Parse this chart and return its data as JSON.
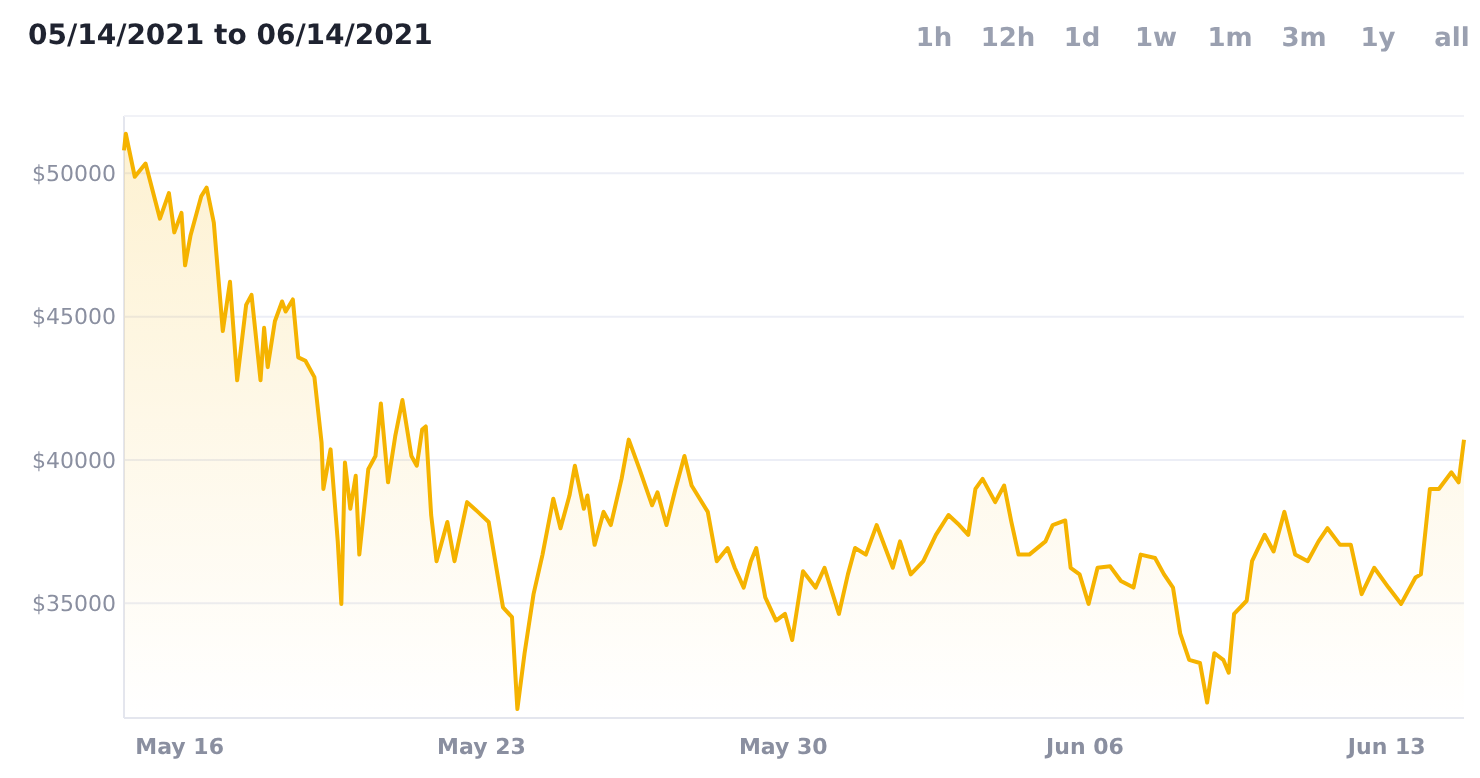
{
  "chart_data": {
    "type": "area",
    "title": "05/14/2021 to 06/14/2021",
    "annotations": [
      "1h",
      "12h",
      "1d",
      "1w",
      "1m",
      "3m",
      "1y",
      "all"
    ],
    "xlim": [
      "2021-05-14T17:00",
      "2021-06-14T19:00"
    ],
    "xticks": [
      {
        "value": "2021-05-16",
        "label": "May 16"
      },
      {
        "value": "2021-05-23",
        "label": "May 23"
      },
      {
        "value": "2021-05-30",
        "label": "May 30"
      },
      {
        "value": "2021-06-06",
        "label": "Jun 06"
      },
      {
        "value": "2021-06-13",
        "label": "Jun 13"
      }
    ],
    "ylim": [
      31000,
      52000
    ],
    "yticks": [
      {
        "value": 35000,
        "label": "$35000"
      },
      {
        "value": 40000,
        "label": "$40000"
      },
      {
        "value": 45000,
        "label": "$45000"
      },
      {
        "value": 50000,
        "label": "$50000"
      }
    ],
    "grid": "y",
    "series": [
      {
        "color": "#f5b300",
        "x": [
          "2021-05-14T17:00",
          "2021-05-14T18:00",
          "2021-05-14T23:00",
          "2021-05-15T05:00",
          "2021-05-15T13:00",
          "2021-05-15T18:00",
          "2021-05-15T21:00",
          "2021-05-16T01:00",
          "2021-05-16T03:00",
          "2021-05-16T06:00",
          "2021-05-16T12:00",
          "2021-05-16T15:00",
          "2021-05-16T19:00",
          "2021-05-17T00:00",
          "2021-05-17T04:00",
          "2021-05-17T08:00",
          "2021-05-17T13:00",
          "2021-05-17T16:00",
          "2021-05-17T21:00",
          "2021-05-17T23:00",
          "2021-05-18T01:00",
          "2021-05-18T05:00",
          "2021-05-18T09:00",
          "2021-05-18T11:00",
          "2021-05-18T15:00",
          "2021-05-18T18:00",
          "2021-05-18T22:00",
          "2021-05-19T03:00",
          "2021-05-19T07:00",
          "2021-05-19T08:00",
          "2021-05-19T12:00",
          "2021-05-19T16:00",
          "2021-05-19T18:00",
          "2021-05-19T20:00",
          "2021-05-19T23:00",
          "2021-05-20T02:00",
          "2021-05-20T04:00",
          "2021-05-20T09:00",
          "2021-05-20T13:00",
          "2021-05-20T16:00",
          "2021-05-20T20:00",
          "2021-05-21T00:00",
          "2021-05-21T04:00",
          "2021-05-21T09:00",
          "2021-05-21T12:00",
          "2021-05-21T15:00",
          "2021-05-21T17:00",
          "2021-05-21T20:00",
          "2021-05-21T23:00",
          "2021-05-22T05:00",
          "2021-05-22T09:00",
          "2021-05-22T16:00",
          "2021-05-22T22:00",
          "2021-05-23T04:00",
          "2021-05-23T12:00",
          "2021-05-23T17:00",
          "2021-05-23T20:00",
          "2021-05-24T00:00",
          "2021-05-24T05:00",
          "2021-05-24T10:00",
          "2021-05-24T16:00",
          "2021-05-24T20:00",
          "2021-05-25T01:00",
          "2021-05-25T04:00",
          "2021-05-25T09:00",
          "2021-05-25T11:00",
          "2021-05-25T15:00",
          "2021-05-25T20:00",
          "2021-05-26T00:00",
          "2021-05-26T06:00",
          "2021-05-26T10:00",
          "2021-05-26T16:00",
          "2021-05-26T23:00",
          "2021-05-27T02:00",
          "2021-05-27T07:00",
          "2021-05-27T12:00",
          "2021-05-27T17:00",
          "2021-05-27T21:00",
          "2021-05-28T06:00",
          "2021-05-28T11:00",
          "2021-05-28T17:00",
          "2021-05-28T21:00",
          "2021-05-29T02:00",
          "2021-05-29T06:00",
          "2021-05-29T09:00",
          "2021-05-29T14:00",
          "2021-05-29T20:00",
          "2021-05-30T01:00",
          "2021-05-30T05:00",
          "2021-05-30T11:00",
          "2021-05-30T18:00",
          "2021-05-30T23:00",
          "2021-05-31T07:00",
          "2021-05-31T12:00",
          "2021-05-31T16:00",
          "2021-05-31T22:00",
          "2021-06-01T04:00",
          "2021-06-01T13:00",
          "2021-06-01T17:00",
          "2021-06-01T23:00",
          "2021-06-02T06:00",
          "2021-06-02T13:00",
          "2021-06-02T20:00",
          "2021-06-03T02:00",
          "2021-06-03T07:00",
          "2021-06-03T11:00",
          "2021-06-03T15:00",
          "2021-06-03T22:00",
          "2021-06-04T03:00",
          "2021-06-04T07:00",
          "2021-06-04T11:00",
          "2021-06-04T17:00",
          "2021-06-05T02:00",
          "2021-06-05T06:00",
          "2021-06-05T13:00",
          "2021-06-05T16:00",
          "2021-06-05T21:00",
          "2021-06-06T02:00",
          "2021-06-06T07:00",
          "2021-06-06T14:00",
          "2021-06-06T20:00",
          "2021-06-07T03:00",
          "2021-06-07T07:00",
          "2021-06-07T15:00",
          "2021-06-07T20:00",
          "2021-06-08T01:00",
          "2021-06-08T05:00",
          "2021-06-08T10:00",
          "2021-06-08T16:00",
          "2021-06-08T20:00",
          "2021-06-09T00:00",
          "2021-06-09T05:00",
          "2021-06-09T08:00",
          "2021-06-09T11:00",
          "2021-06-09T18:00",
          "2021-06-09T21:00",
          "2021-06-10T04:00",
          "2021-06-10T09:00",
          "2021-06-10T15:00",
          "2021-06-10T21:00",
          "2021-06-11T04:00",
          "2021-06-11T10:00",
          "2021-06-11T15:00",
          "2021-06-11T22:00",
          "2021-06-12T04:00",
          "2021-06-12T10:00",
          "2021-06-12T17:00",
          "2021-06-13T01:00",
          "2021-06-13T08:00",
          "2021-06-13T16:00",
          "2021-06-13T19:00",
          "2021-06-14T00:00",
          "2021-06-14T05:00",
          "2021-06-14T12:00",
          "2021-06-14T16:00",
          "2021-06-14T19:00"
        ],
        "values": [
          50800,
          51380,
          49880,
          50340,
          48420,
          49310,
          47940,
          48620,
          46790,
          47820,
          49200,
          49500,
          48280,
          44500,
          46220,
          42780,
          45410,
          45760,
          42780,
          44610,
          43240,
          44840,
          45530,
          45180,
          45600,
          43580,
          43460,
          42890,
          40600,
          38990,
          40370,
          37160,
          34980,
          39910,
          38300,
          39450,
          36700,
          39680,
          40140,
          41970,
          39220,
          40830,
          42090,
          40140,
          39800,
          41060,
          41170,
          38080,
          36470,
          37840,
          36470,
          38530,
          38190,
          37840,
          34860,
          34520,
          31310,
          33260,
          35320,
          36700,
          38650,
          37620,
          38760,
          39800,
          38300,
          38760,
          37040,
          38190,
          37730,
          39340,
          40710,
          39680,
          38420,
          38870,
          37730,
          38990,
          40140,
          39110,
          38190,
          36470,
          36930,
          36240,
          35550,
          36470,
          36930,
          35210,
          34400,
          34630,
          33720,
          36120,
          35550,
          36240,
          34630,
          36010,
          36930,
          36700,
          37730,
          36240,
          37160,
          36010,
          36470,
          37390,
          38080,
          37730,
          37390,
          38990,
          39340,
          38530,
          39110,
          37840,
          36700,
          36700,
          37160,
          37730,
          37890,
          36240,
          36010,
          34980,
          36240,
          36290,
          35780,
          35550,
          36700,
          36580,
          36010,
          35550,
          33950,
          33030,
          32920,
          31540,
          33260,
          33030,
          32580,
          34630,
          35090,
          36470,
          37390,
          36810,
          38190,
          36700,
          36470,
          37160,
          37620,
          37040,
          37040,
          35320,
          36240,
          35550,
          34980,
          35900,
          36010,
          38990,
          38990,
          39570,
          39220,
          40710
        ]
      }
    ]
  }
}
